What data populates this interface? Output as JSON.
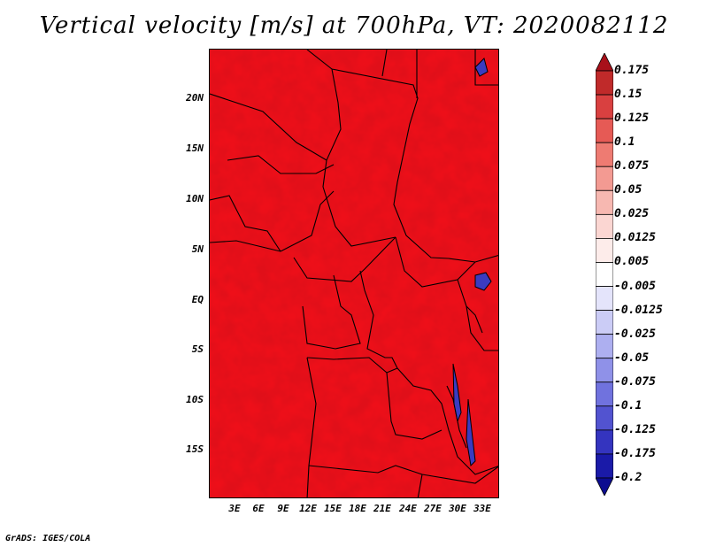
{
  "title": "Vertical velocity [m/s] at 700hPa, VT: 2020082112",
  "footer": "GrADS: IGES/COLA",
  "lat_labels": [
    "20N",
    "15N",
    "10N",
    "5N",
    "EQ",
    "5S",
    "10S",
    "15S"
  ],
  "lon_labels": [
    "3E",
    "6E",
    "9E",
    "12E",
    "15E",
    "18E",
    "21E",
    "24E",
    "27E",
    "30E",
    "33E"
  ],
  "colorbar": {
    "labels": [
      "0.175",
      "0.15",
      "0.125",
      "0.1",
      "0.075",
      "0.05",
      "0.025",
      "0.0125",
      "0.005",
      "-0.005",
      "-0.0125",
      "-0.025",
      "-0.05",
      "-0.075",
      "-0.1",
      "-0.125",
      "-0.175",
      "-0.2"
    ],
    "colors": [
      "#a8101a",
      "#c02a2a",
      "#d94040",
      "#e65a55",
      "#ee7b72",
      "#f39a92",
      "#f7b8b1",
      "#fbd6d2",
      "#fdecea",
      "#ffffff",
      "#e4e4fb",
      "#cbccf6",
      "#adaff0",
      "#8f91e8",
      "#7072de",
      "#5253d0",
      "#3434bf",
      "#1a1aa8",
      "#0c0c90"
    ]
  }
}
